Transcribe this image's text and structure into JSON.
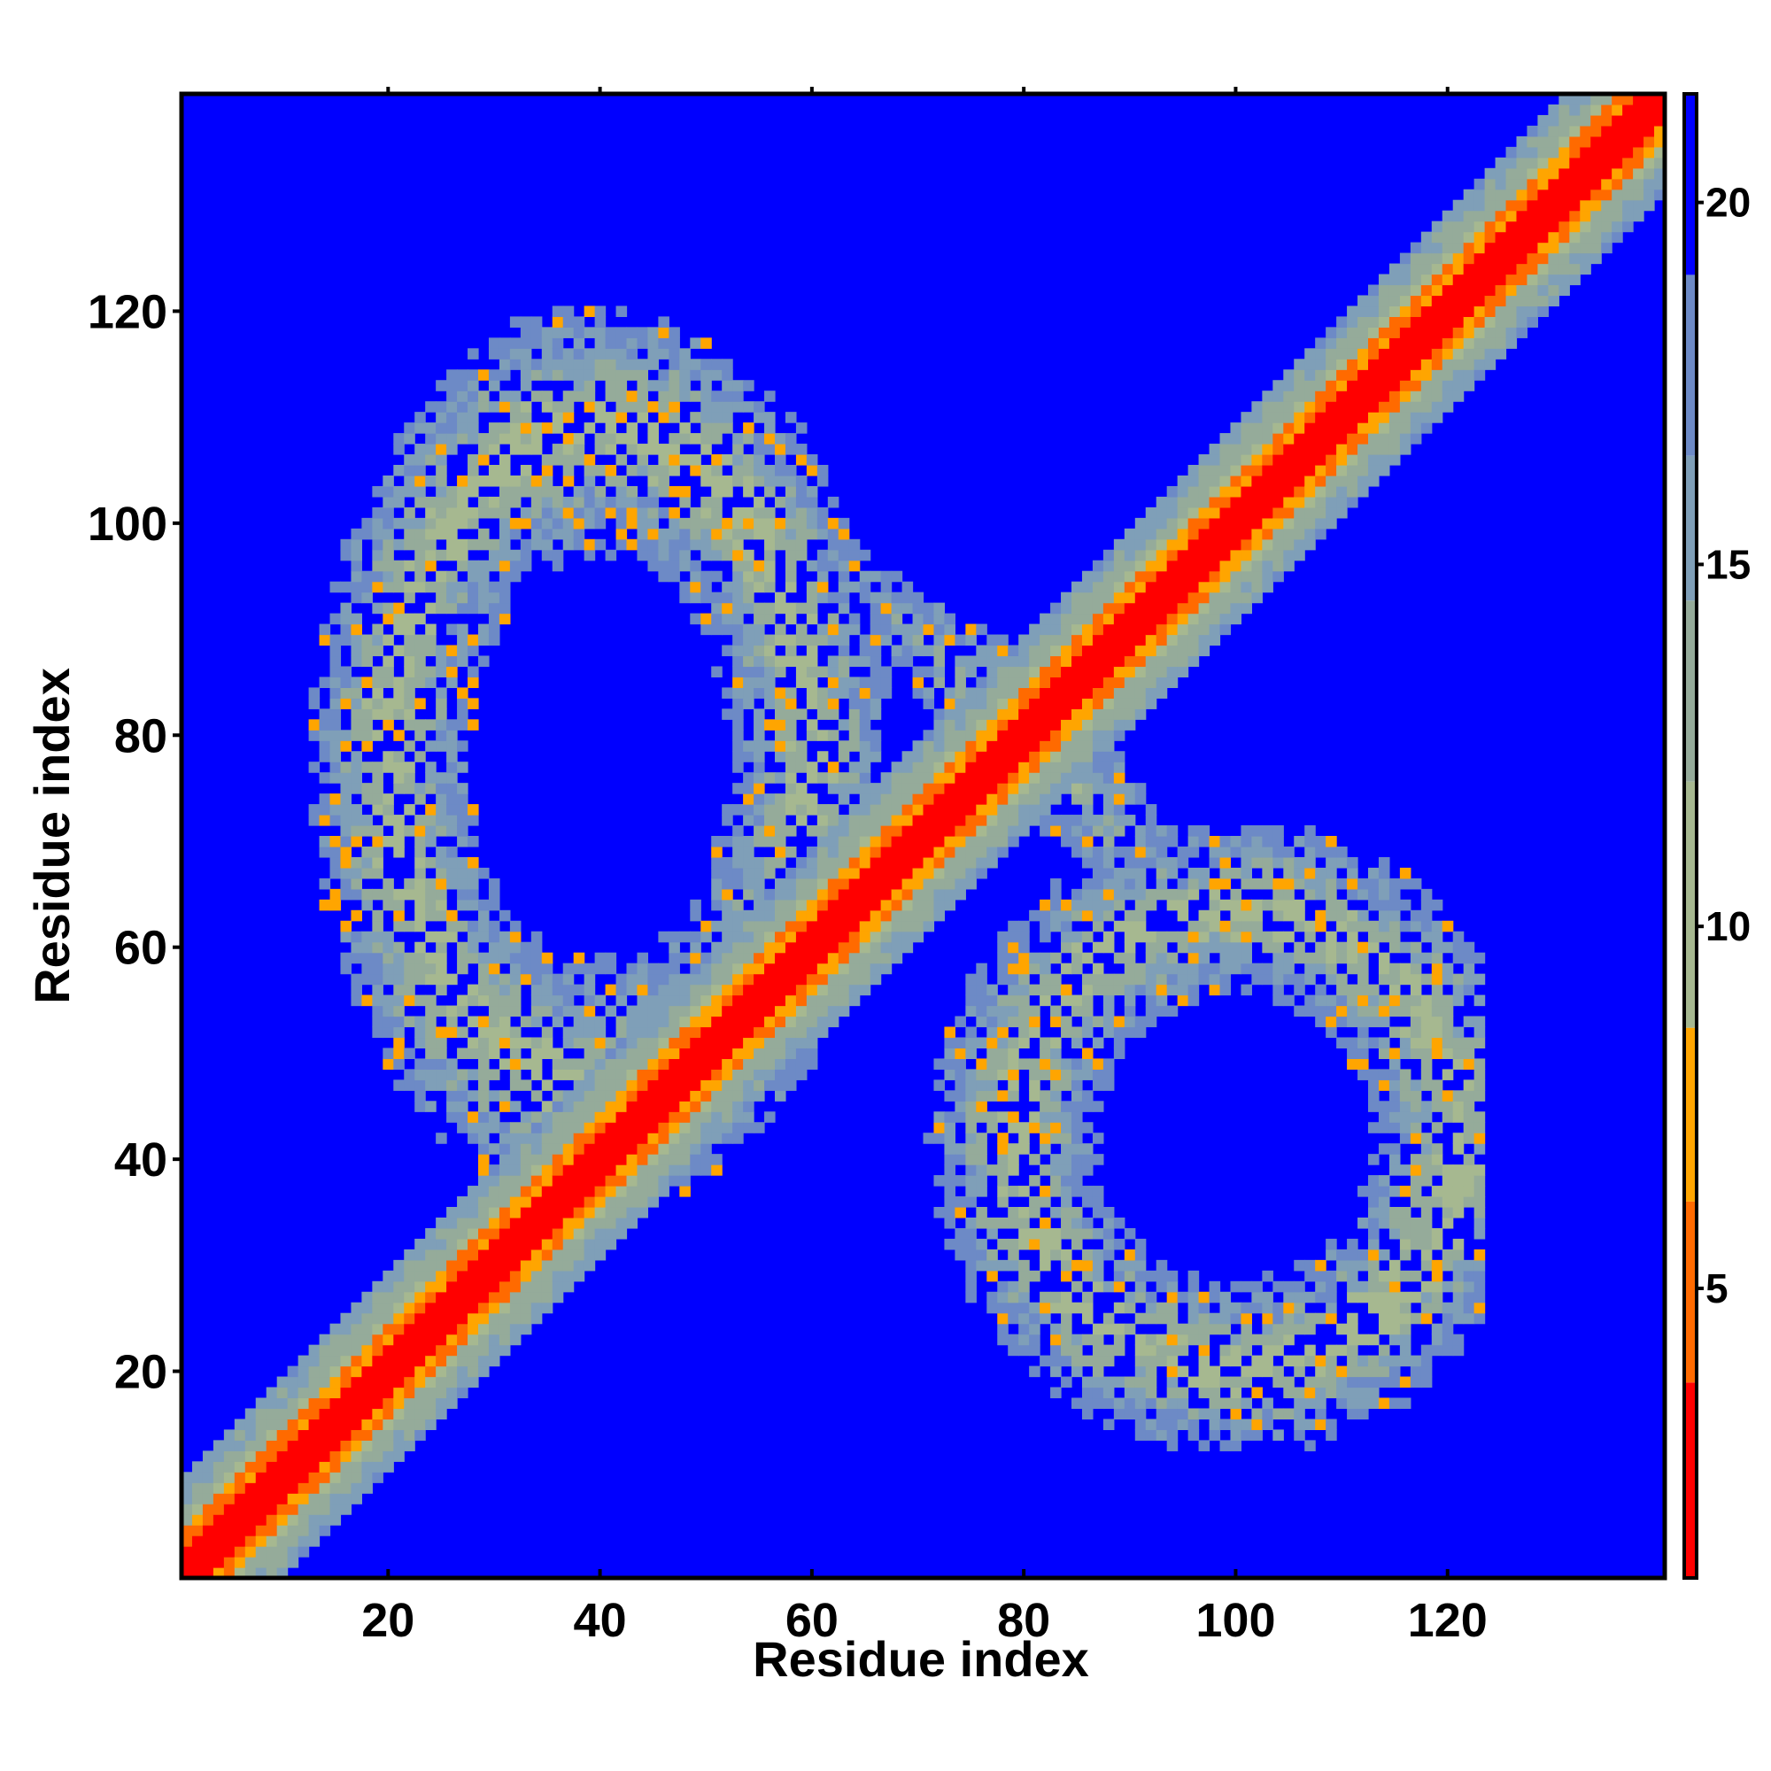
{
  "chart_data": {
    "type": "heatmap",
    "title": "",
    "xlabel": "Residue index",
    "ylabel": "Residue index",
    "xlim": [
      1,
      140
    ],
    "ylim": [
      1,
      140
    ],
    "x_ticks": [
      20,
      40,
      60,
      80,
      100,
      120
    ],
    "y_ticks": [
      20,
      40,
      60,
      80,
      100,
      120
    ],
    "colorbar": {
      "range": [
        1,
        21.5
      ],
      "ticks": [
        5,
        10,
        15,
        20
      ],
      "bins": [
        {
          "from": 1,
          "to": 3.7,
          "color": "#ff0000"
        },
        {
          "from": 3.7,
          "to": 6.2,
          "color": "#ff6a00"
        },
        {
          "from": 6.2,
          "to": 8.6,
          "color": "#ffa500"
        },
        {
          "from": 8.6,
          "to": 12,
          "color": "#a6b890"
        },
        {
          "from": 12,
          "to": 14.5,
          "color": "#95ab9a"
        },
        {
          "from": 14.5,
          "to": 16.5,
          "color": "#7f9fb8"
        },
        {
          "from": 16.5,
          "to": 19,
          "color": "#6d8ac6"
        },
        {
          "from": 19,
          "to": 21.5,
          "color": "#0000ff"
        }
      ]
    },
    "background_color": "#0000ff",
    "matrix_size": 140,
    "structure": {
      "diagonal_band": {
        "core_halfwidth": 2,
        "orange_halfwidth": 4,
        "green_halfwidth": 9
      },
      "contact_lobes": [
        {
          "label": "upper-left lobe",
          "x_range": [
            13,
            68
          ],
          "y_range": [
            37,
            123
          ],
          "centre": [
            40,
            78
          ]
        },
        {
          "label": "lower-right lobe",
          "x_range": [
            65,
            123
          ],
          "y_range": [
            13,
            73
          ],
          "centre": [
            100,
            42
          ]
        },
        {
          "label": "anti-diagonal arm",
          "x_range": [
            60,
            100
          ],
          "y_range": [
            60,
            100
          ],
          "centre": [
            80,
            80
          ]
        }
      ]
    }
  }
}
